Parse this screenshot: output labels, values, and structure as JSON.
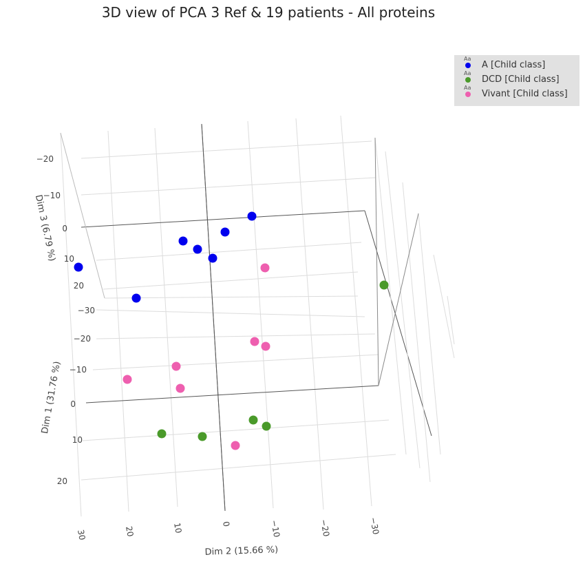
{
  "chart_data": {
    "type": "scatter3d",
    "title": "3D view of PCA 3 Ref & 19 patients - All proteins",
    "axes": {
      "dim1": {
        "label": "Dim 1 (31.76 %)",
        "ticks": [
          "−30",
          "−20",
          "−10",
          "0",
          "10",
          "20"
        ]
      },
      "dim2": {
        "label": "Dim 2 (15.66 %)",
        "ticks": [
          "30",
          "20",
          "10",
          "0",
          "−10",
          "−20",
          "−30"
        ]
      },
      "dim3": {
        "label": "Dim 3 (6.79 %)",
        "ticks": [
          "−20",
          "−10",
          "0",
          "10",
          "20"
        ]
      }
    },
    "series": [
      {
        "name": "A [Child class]",
        "color": "#0000ee",
        "points": [
          {
            "d2": 30,
            "d1": -36,
            "d3": 14
          },
          {
            "d2": 20,
            "d1": -23,
            "d3": 23
          },
          {
            "d2": 9,
            "d1": -38,
            "d3": 3
          },
          {
            "d2": 6,
            "d1": -37,
            "d3": 6
          },
          {
            "d2": 2,
            "d1": -35,
            "d3": 8
          },
          {
            "d2": -1,
            "d1": -38,
            "d3": 1
          },
          {
            "d2": -7,
            "d1": -41,
            "d3": -3
          }
        ]
      },
      {
        "name": "DCD [Child class]",
        "color": "#4a9a2a",
        "points": [
          {
            "d2": -34,
            "d1": -20,
            "d3": 4
          },
          {
            "d2": 13,
            "d1": 9,
            "d3": 0
          },
          {
            "d2": 4,
            "d1": 9,
            "d3": 0
          },
          {
            "d2": -7,
            "d1": 5,
            "d3": 0
          },
          {
            "d2": -10,
            "d1": 6,
            "d3": 0
          }
        ]
      },
      {
        "name": "Vivant [Child class]",
        "color": "#ee5faf",
        "points": [
          {
            "d2": -10,
            "d1": -31,
            "d3": 7
          },
          {
            "d2": 21,
            "d1": -6,
            "d3": 0
          },
          {
            "d2": 11,
            "d1": -9,
            "d3": 0
          },
          {
            "d2": 10,
            "d1": -4,
            "d3": 0
          },
          {
            "d2": -7,
            "d1": -18,
            "d3": 0
          },
          {
            "d2": -10,
            "d1": -17,
            "d3": 0
          },
          {
            "d2": -3,
            "d1": 12,
            "d3": 0
          }
        ]
      }
    ],
    "legend": {
      "position": "top-right",
      "badge": "Aa"
    },
    "grid": true
  }
}
